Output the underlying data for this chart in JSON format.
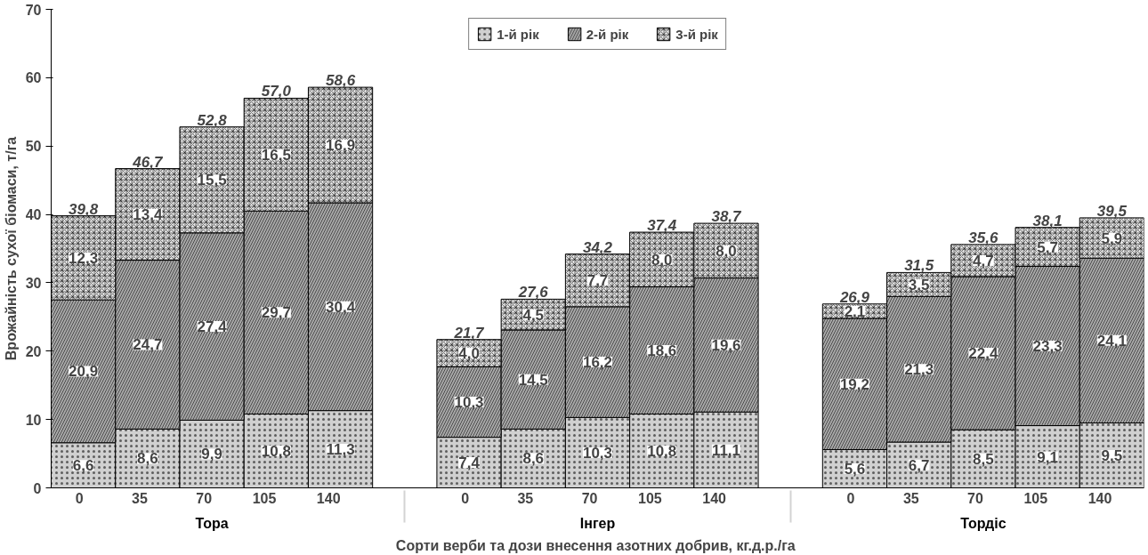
{
  "chart_data": {
    "type": "bar",
    "stacked": true,
    "xlabel": "Сорти верби та  дози внесення азотних добрив, кг.д.р./га",
    "ylabel": "Врожайність сухої біомаси, т/га",
    "categories": [
      "0",
      "35",
      "70",
      "105",
      "140",
      null,
      "0",
      "35",
      "70",
      "105",
      "140",
      null,
      "0",
      "35",
      "70",
      "105",
      "140"
    ],
    "annotations": [
      "Тора",
      "Інгер",
      "Тордіс"
    ],
    "ylim": [
      0,
      70
    ],
    "yticks": [
      0,
      10,
      20,
      30,
      40,
      50,
      60,
      70
    ],
    "grid": false,
    "legend": "top",
    "series": [
      {
        "name": "1-й рік",
        "color": "#d0d0d0",
        "values": [
          6.6,
          8.6,
          9.9,
          10.8,
          11.3,
          null,
          7.4,
          8.6,
          10.3,
          10.8,
          11.1,
          null,
          5.6,
          6.7,
          8.5,
          9.1,
          9.5
        ],
        "value_labels": [
          "6,6",
          "8,6",
          "9,9",
          "10,8",
          "11,3",
          null,
          "7,4",
          "8,6",
          "10,3",
          "10,8",
          "11,1",
          null,
          "5,6",
          "6,7",
          "8,5",
          "9,1",
          "9,5"
        ]
      },
      {
        "name": "2-й рік",
        "color": "#a8a8a8",
        "values": [
          20.9,
          24.7,
          27.4,
          29.7,
          30.4,
          null,
          10.3,
          14.5,
          16.2,
          18.6,
          19.6,
          null,
          19.2,
          21.3,
          22.4,
          23.3,
          24.1
        ],
        "value_labels": [
          "20,9",
          "24,7",
          "27,4",
          "29,7",
          "30,4",
          null,
          "10,3",
          "14,5",
          "16,2",
          "18,6",
          "19,6",
          null,
          "19,2",
          "21,3",
          "22,4",
          "23,3",
          "24,1"
        ]
      },
      {
        "name": "3-й рік",
        "color": "#e8e8e8",
        "values": [
          12.3,
          13.4,
          15.5,
          16.5,
          16.9,
          null,
          4.0,
          4.5,
          7.7,
          8.0,
          8.0,
          null,
          2.1,
          3.5,
          4.7,
          5.7,
          5.9
        ],
        "value_labels": [
          "12,3",
          "13,4",
          "15,5",
          "16,5",
          "16,9",
          null,
          "4,0",
          "4,5",
          "7,7",
          "8,0",
          "8,0",
          null,
          "2,1",
          "3,5",
          "4,7",
          "5,7",
          "5,9"
        ]
      }
    ],
    "totals": [
      "39,8",
      "46,7",
      "52,8",
      "57,0",
      "58,6",
      null,
      "21,7",
      "27,6",
      "34,2",
      "37,4",
      "38,7",
      null,
      "26,9",
      "31,5",
      "35,6",
      "38,1",
      "39,5"
    ]
  }
}
